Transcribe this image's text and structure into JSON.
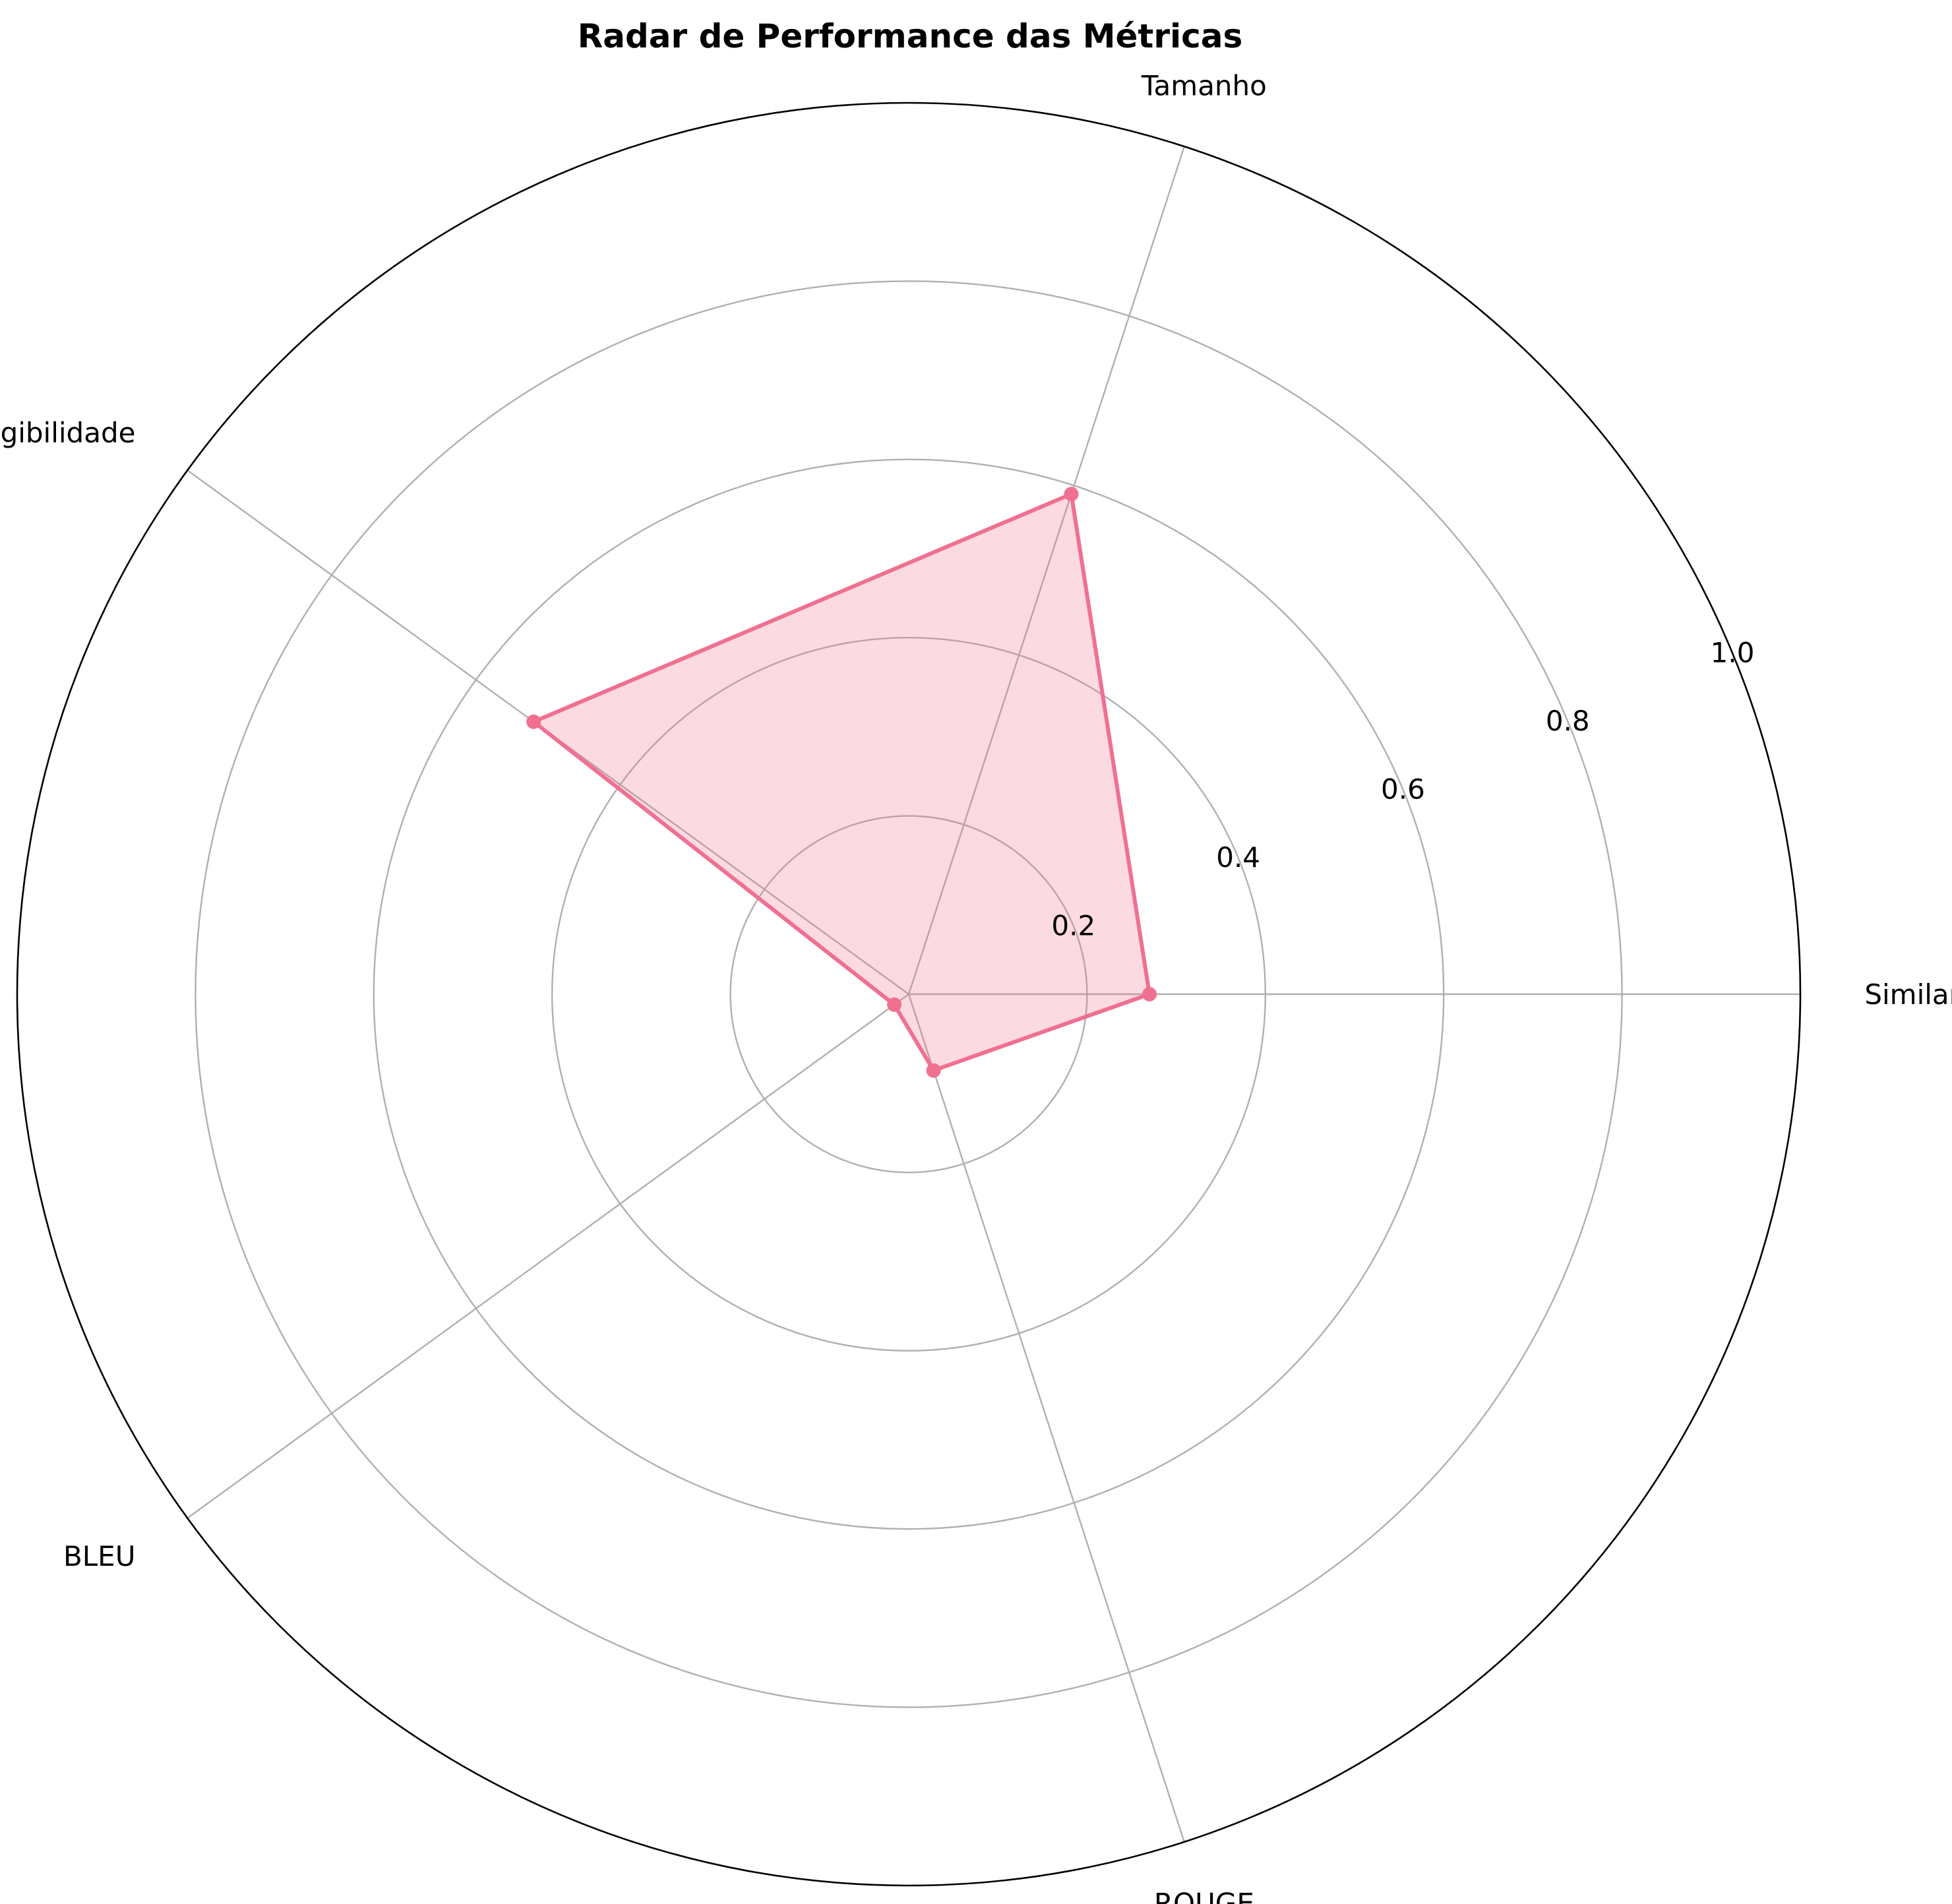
{
  "chart_data": {
    "type": "radar",
    "title": "Radar de Performance das Métricas",
    "axes": [
      "Similaridade",
      "Tamanho",
      "Legibilidade",
      "BLEU",
      "ROUGE"
    ],
    "series": [
      {
        "values": [
          0.27,
          0.59,
          0.52,
          0.02,
          0.09
        ],
        "color": "#f07090",
        "fill_color": "#f07090",
        "fill_opacity": 0.26
      }
    ],
    "rlim": [
      0,
      1.0
    ],
    "rticks": [
      0.2,
      0.4,
      0.6,
      0.8,
      1.0
    ],
    "rtick_labels": [
      "0.2",
      "0.4",
      "0.6",
      "0.8",
      "1.0"
    ],
    "grid": true,
    "grid_color": "#b0b0b0",
    "outline_color": "#000000"
  }
}
